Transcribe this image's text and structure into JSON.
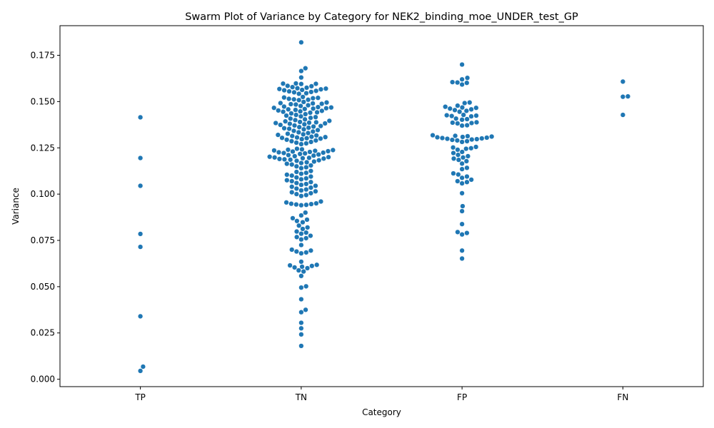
{
  "chart_data": {
    "type": "scatter",
    "subtype": "swarm",
    "title": "Swarm Plot of Variance by Category for NEK2_binding_moe_UNDER_test_GP",
    "xlabel": "Category",
    "ylabel": "Variance",
    "categories": [
      "TP",
      "TN",
      "FP",
      "FN"
    ],
    "ylim": [
      -0.004,
      0.191
    ],
    "yticks": [
      "0.000",
      "0.025",
      "0.050",
      "0.075",
      "0.100",
      "0.125",
      "0.150",
      "0.175"
    ],
    "ytick_values": [
      0.0,
      0.025,
      0.05,
      0.075,
      0.1,
      0.125,
      0.15,
      0.175
    ],
    "grid": false,
    "point_color": "#1f77b4",
    "series": [
      {
        "category": "TP",
        "values": [
          0.1415,
          0.1195,
          0.1045,
          0.0785,
          0.0715,
          0.034,
          0.0068,
          0.0045
        ]
      },
      {
        "category": "TN",
        "values": [
          0.182,
          0.168,
          0.1665,
          0.163,
          0.1598,
          0.1597,
          0.1596,
          0.1595,
          0.1585,
          0.1583,
          0.1578,
          0.1575,
          0.1572,
          0.157,
          0.1568,
          0.1566,
          0.1563,
          0.1561,
          0.1558,
          0.1555,
          0.1552,
          0.155,
          0.1545,
          0.1542,
          0.1525,
          0.1522,
          0.152,
          0.1518,
          0.1515,
          0.1512,
          0.151,
          0.1508,
          0.1498,
          0.1495,
          0.1492,
          0.149,
          0.1488,
          0.1486,
          0.1484,
          0.148,
          0.1476,
          0.1473,
          0.147,
          0.1468,
          0.1466,
          0.1464,
          0.1462,
          0.146,
          0.1458,
          0.1455,
          0.1452,
          0.145,
          0.1447,
          0.1445,
          0.1442,
          0.144,
          0.1436,
          0.1432,
          0.1428,
          0.1424,
          0.142,
          0.1416,
          0.1412,
          0.1408,
          0.1404,
          0.14,
          0.1396,
          0.1393,
          0.139,
          0.1388,
          0.1386,
          0.1384,
          0.1382,
          0.138,
          0.1377,
          0.1374,
          0.1371,
          0.1368,
          0.1365,
          0.1362,
          0.1359,
          0.1356,
          0.1353,
          0.135,
          0.1346,
          0.1342,
          0.1338,
          0.1334,
          0.133,
          0.1326,
          0.1323,
          0.132,
          0.1317,
          0.1314,
          0.131,
          0.1308,
          0.1306,
          0.1304,
          0.1302,
          0.13,
          0.1297,
          0.1294,
          0.129,
          0.1286,
          0.1282,
          0.1278,
          0.1274,
          0.127,
          0.1245,
          0.1242,
          0.124,
          0.1238,
          0.1236,
          0.1234,
          0.1232,
          0.123,
          0.1228,
          0.1226,
          0.1224,
          0.1222,
          0.122,
          0.1217,
          0.1214,
          0.1211,
          0.1208,
          0.1205,
          0.1202,
          0.12,
          0.1198,
          0.1196,
          0.1194,
          0.1192,
          0.119,
          0.1188,
          0.1186,
          0.1183,
          0.118,
          0.1176,
          0.1172,
          0.1168,
          0.1164,
          0.116,
          0.1155,
          0.115,
          0.1145,
          0.114,
          0.1125,
          0.112,
          0.1115,
          0.111,
          0.1105,
          0.11,
          0.1095,
          0.109,
          0.1085,
          0.108,
          0.1075,
          0.107,
          0.1065,
          0.106,
          0.1055,
          0.105,
          0.1045,
          0.104,
          0.1035,
          0.103,
          0.1025,
          0.102,
          0.1015,
          0.101,
          0.1005,
          0.1,
          0.0995,
          0.099,
          0.096,
          0.0955,
          0.095,
          0.0948,
          0.0946,
          0.0944,
          0.0942,
          0.094,
          0.09,
          0.0885,
          0.087,
          0.0862,
          0.0855,
          0.0848,
          0.083,
          0.082,
          0.0812,
          0.0798,
          0.0792,
          0.0786,
          0.0775,
          0.0768,
          0.0762,
          0.0755,
          0.0725,
          0.07,
          0.0695,
          0.069,
          0.0685,
          0.068,
          0.0635,
          0.0618,
          0.0615,
          0.0612,
          0.0608,
          0.0604,
          0.06,
          0.0588,
          0.0582,
          0.0558,
          0.0502,
          0.0495,
          0.0432,
          0.0375,
          0.0362,
          0.0305,
          0.0275,
          0.0242,
          0.018
        ]
      },
      {
        "category": "FP",
        "values": [
          0.17,
          0.1628,
          0.162,
          0.1605,
          0.1603,
          0.1601,
          0.1592,
          0.1495,
          0.1492,
          0.1478,
          0.1472,
          0.1468,
          0.1466,
          0.1462,
          0.1458,
          0.1454,
          0.145,
          0.1445,
          0.1428,
          0.1426,
          0.1424,
          0.1422,
          0.142,
          0.1408,
          0.1405,
          0.1402,
          0.1388,
          0.1386,
          0.1384,
          0.1382,
          0.1372,
          0.137,
          0.1318,
          0.1315,
          0.1313,
          0.1311,
          0.1309,
          0.1307,
          0.1305,
          0.1303,
          0.1301,
          0.1299,
          0.1297,
          0.1295,
          0.1293,
          0.129,
          0.1286,
          0.1282,
          0.1255,
          0.1252,
          0.1248,
          0.1245,
          0.124,
          0.1228,
          0.1222,
          0.1212,
          0.1205,
          0.1198,
          0.1192,
          0.1185,
          0.1178,
          0.1165,
          0.1142,
          0.1135,
          0.1112,
          0.1106,
          0.1095,
          0.1088,
          0.1078,
          0.107,
          0.1065,
          0.1058,
          0.1005,
          0.0935,
          0.0908,
          0.0838,
          0.0795,
          0.079,
          0.0782,
          0.0695,
          0.0652
        ]
      },
      {
        "category": "FN",
        "values": [
          0.1608,
          0.1528,
          0.1526,
          0.1428
        ]
      }
    ]
  }
}
